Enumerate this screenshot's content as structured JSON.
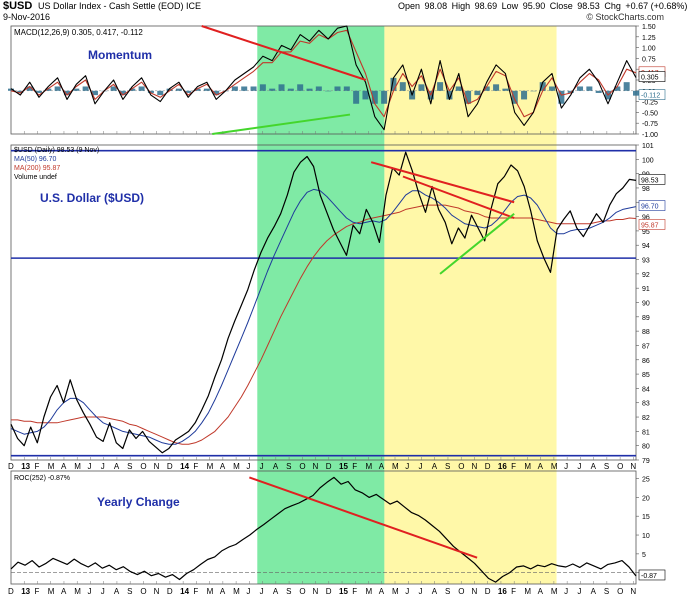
{
  "header": {
    "symbol": "$USD",
    "description": "US Dollar Index - Cash Settle (EOD) ICE",
    "date": "9-Nov-2016",
    "open_label": "Open",
    "open": "98.08",
    "high_label": "High",
    "high": "98.69",
    "low_label": "Low",
    "low": "95.90",
    "close_label": "Close",
    "close": "98.53",
    "chg_label": "Chg",
    "chg": "+0.67 (+0.68%)",
    "credit": "© StockCharts.com"
  },
  "colors": {
    "green_zone": "#7FEAA5",
    "yellow_zone": "#FFF8A8",
    "price_line": "#000000",
    "ma50": "#1F3B9B",
    "ma200": "#C0392B",
    "macd_line": "#000000",
    "signal_line": "#C0392B",
    "histogram": "#2E6E8E",
    "support_line": "#1F2FA8",
    "trend_red": "#E02020",
    "trend_green": "#44D62C"
  },
  "chart_data": [
    {
      "id": "macd-panel",
      "type": "line",
      "legend": "MACD(12,26,9) 0.305, 0.417, -0.112",
      "legend_parts": {
        "name": "MACD(12,26,9)",
        "macd": "0.305",
        "signal": "0.417",
        "hist": "-0.112"
      },
      "annotation": "Momentum",
      "ylim": [
        -1.0,
        1.5
      ],
      "y_ticks": [
        "1.50",
        "1.25",
        "1.00",
        "0.75",
        "0.50",
        "0.25",
        "0.00",
        "-0.25",
        "-0.50",
        "-0.75",
        "-1.00"
      ],
      "value_badges": [
        "0.305",
        "0.417",
        "-0.112"
      ],
      "macd": [
        0.05,
        -0.1,
        0.2,
        -0.15,
        0.1,
        0.3,
        -0.2,
        0.15,
        0.35,
        -0.3,
        0.0,
        0.25,
        -0.2,
        0.1,
        0.3,
        -0.1,
        -0.25,
        0.05,
        0.2,
        -0.15,
        0.1,
        0.2,
        -0.2,
        0.0,
        0.25,
        0.4,
        0.55,
        0.8,
        0.7,
        1.05,
        0.95,
        1.3,
        1.15,
        1.4,
        1.2,
        1.45,
        1.5,
        0.6,
        0.2,
        -0.6,
        -0.9,
        0.3,
        0.6,
        -0.1,
        0.5,
        -0.3,
        0.7,
        -0.2,
        0.4,
        -0.6,
        -0.3,
        0.2,
        0.6,
        0.4,
        -0.5,
        -0.8,
        -0.5,
        0.2,
        0.4,
        -0.4,
        -0.1,
        0.3,
        0.5,
        0.2,
        -0.3,
        0.2,
        0.7,
        0.305
      ],
      "signal": [
        0.0,
        -0.05,
        0.1,
        -0.1,
        0.05,
        0.2,
        -0.1,
        0.1,
        0.25,
        -0.2,
        0.0,
        0.15,
        -0.1,
        0.05,
        0.2,
        -0.05,
        -0.15,
        0.0,
        0.15,
        -0.1,
        0.05,
        0.15,
        -0.1,
        0.0,
        0.15,
        0.3,
        0.45,
        0.65,
        0.65,
        0.9,
        0.9,
        1.15,
        1.1,
        1.3,
        1.2,
        1.35,
        1.4,
        0.9,
        0.4,
        -0.3,
        -0.6,
        0.0,
        0.4,
        0.1,
        0.35,
        -0.1,
        0.5,
        0.0,
        0.3,
        -0.3,
        -0.2,
        0.1,
        0.45,
        0.35,
        -0.2,
        -0.6,
        -0.5,
        0.0,
        0.3,
        -0.1,
        -0.05,
        0.2,
        0.4,
        0.25,
        -0.1,
        0.1,
        0.5,
        0.417
      ],
      "trendlines": [
        {
          "color": "trend_red",
          "from": [
            36,
            1.5
          ],
          "to": [
            67,
            0.25
          ]
        },
        {
          "color": "trend_green",
          "from": [
            38,
            -1.0
          ],
          "to": [
            64,
            -0.55
          ]
        }
      ]
    },
    {
      "id": "price-panel",
      "type": "line",
      "legend": [
        "$USD (Daily) 98.53 (9 Nov)",
        "MA(50) 96.70",
        "MA(200) 95.87",
        "Volume undef"
      ],
      "annotation": "U.S. Dollar ($USD)",
      "ylim": [
        79,
        101
      ],
      "y_ticks": [
        "101",
        "100",
        "99",
        "98",
        "97",
        "96",
        "95",
        "94",
        "93",
        "92",
        "91",
        "90",
        "89",
        "88",
        "87",
        "86",
        "85",
        "84",
        "83",
        "82",
        "81",
        "80",
        "79"
      ],
      "value_badges": [
        "98.53",
        "96.70",
        "95.87"
      ],
      "support_lines": [
        100.6,
        93.1,
        79.3
      ],
      "price": [
        81.5,
        80.5,
        80.0,
        81.3,
        80.2,
        82.0,
        83.4,
        84.2,
        83.0,
        84.6,
        83.2,
        82.3,
        81.5,
        80.6,
        80.3,
        81.6,
        80.2,
        79.8,
        81.1,
        80.5,
        81.0,
        80.3,
        79.9,
        79.5,
        79.8,
        80.4,
        80.7,
        81.0,
        81.6,
        82.5,
        83.5,
        84.8,
        86.0,
        87.5,
        88.7,
        89.8,
        90.9,
        92.3,
        93.5,
        94.5,
        95.3,
        96.2,
        97.5,
        99.1,
        99.8,
        100.2,
        99.5,
        97.5,
        96.3,
        95.1,
        94.2,
        93.3,
        95.4,
        94.8,
        96.5,
        95.6,
        94.2,
        97.5,
        99.4,
        98.9,
        100.5,
        99.2,
        97.6,
        96.3,
        98.1,
        96.5,
        95.6,
        94.1,
        95.2,
        94.5,
        96.1,
        95.2,
        94.3,
        96.6,
        98.3,
        98.8,
        99.6,
        99.2,
        98.1,
        96.4,
        94.3,
        93.1,
        92.1,
        95.1,
        95.8,
        96.4,
        95.2,
        94.6,
        95.4,
        96.2,
        95.6,
        96.8,
        97.6,
        98.0,
        98.6,
        98.53
      ],
      "ma50": [
        81.2,
        81.0,
        80.8,
        80.9,
        81.0,
        81.3,
        81.8,
        82.5,
        83.0,
        83.3,
        83.3,
        83.0,
        82.5,
        82.0,
        81.6,
        81.4,
        81.2,
        81.0,
        80.9,
        80.8,
        80.7,
        80.6,
        80.4,
        80.2,
        80.1,
        80.1,
        80.3,
        80.6,
        81.0,
        81.6,
        82.3,
        83.2,
        84.2,
        85.3,
        86.4,
        87.5,
        88.6,
        89.8,
        91.0,
        92.2,
        93.3,
        94.3,
        95.3,
        96.3,
        97.1,
        97.7,
        97.9,
        97.8,
        97.4,
        96.9,
        96.4,
        95.9,
        95.6,
        95.5,
        95.6,
        95.7,
        95.6,
        95.8,
        96.3,
        96.9,
        97.5,
        97.8,
        97.8,
        97.5,
        97.3,
        97.0,
        96.6,
        96.1,
        95.8,
        95.5,
        95.4,
        95.3,
        95.2,
        95.4,
        95.8,
        96.4,
        97.0,
        97.4,
        97.5,
        97.3,
        96.8,
        96.0,
        95.2,
        94.8,
        94.8,
        95.0,
        95.1,
        95.1,
        95.2,
        95.4,
        95.6,
        95.9,
        96.3,
        96.5,
        96.6,
        96.7
      ],
      "ma200": [
        81.8,
        81.8,
        81.7,
        81.7,
        81.6,
        81.6,
        81.6,
        81.6,
        81.7,
        81.8,
        81.9,
        82.0,
        82.0,
        82.0,
        82.0,
        81.9,
        81.8,
        81.7,
        81.5,
        81.4,
        81.2,
        81.0,
        80.8,
        80.6,
        80.4,
        80.2,
        80.1,
        80.1,
        80.2,
        80.4,
        80.7,
        81.0,
        81.5,
        82.0,
        82.7,
        83.4,
        84.2,
        85.1,
        86.0,
        87.0,
        88.0,
        89.0,
        89.9,
        90.8,
        91.7,
        92.5,
        93.2,
        93.8,
        94.3,
        94.7,
        95.0,
        95.3,
        95.5,
        95.6,
        95.8,
        95.9,
        96.0,
        96.1,
        96.2,
        96.3,
        96.5,
        96.6,
        96.7,
        96.8,
        96.8,
        96.8,
        96.8,
        96.7,
        96.6,
        96.4,
        96.3,
        96.2,
        96.0,
        95.9,
        95.9,
        95.9,
        95.9,
        95.9,
        95.9,
        95.9,
        95.8,
        95.7,
        95.6,
        95.5,
        95.5,
        95.5,
        95.5,
        95.5,
        95.5,
        95.6,
        95.7,
        95.7,
        95.8,
        95.8,
        95.9,
        95.87
      ],
      "trendlines": [
        {
          "color": "trend_red",
          "from": [
            68,
            99.8
          ],
          "to": [
            95,
            97.0
          ]
        },
        {
          "color": "trend_red",
          "from": [
            74,
            98.8
          ],
          "to": [
            95,
            95.9
          ]
        },
        {
          "color": "trend_green",
          "from": [
            81,
            92.0
          ],
          "to": [
            95,
            96.2
          ]
        }
      ]
    },
    {
      "id": "roc-panel",
      "type": "line",
      "legend": "ROC(252) -0.87%",
      "annotation": "Yearly Change",
      "ylim": [
        -3,
        27
      ],
      "y_ticks": [
        "25",
        "20",
        "15",
        "10",
        "5",
        "0"
      ],
      "value_badges": [
        "-0.87"
      ],
      "values": [
        1.0,
        2.8,
        2.0,
        3.2,
        1.5,
        2.5,
        3.8,
        3.0,
        2.2,
        3.6,
        2.4,
        1.5,
        2.6,
        1.2,
        2.0,
        0.8,
        1.6,
        0.3,
        -0.5,
        0.4,
        -0.8,
        -0.2,
        -1.2,
        -0.5,
        -1.8,
        -0.2,
        0.8,
        2.2,
        3.5,
        4.2,
        5.8,
        6.8,
        7.5,
        8.8,
        10.0,
        11.5,
        12.8,
        14.2,
        15.6,
        17.0,
        17.8,
        18.5,
        19.5,
        20.5,
        22.5,
        24.0,
        25.3,
        23.5,
        24.2,
        22.0,
        21.2,
        20.0,
        20.8,
        19.5,
        18.2,
        19.0,
        17.5,
        16.0,
        15.2,
        14.0,
        12.5,
        11.0,
        9.0,
        7.0,
        5.5,
        4.0,
        2.5,
        0.5,
        -1.5,
        -2.5,
        -1.0,
        0.0,
        1.5,
        1.8,
        1.0,
        2.0,
        1.6,
        2.4,
        1.8,
        1.5,
        2.3,
        1.4,
        2.6,
        1.8,
        1.0,
        2.2,
        2.6,
        3.2,
        1.5,
        -0.87
      ],
      "trendlines": [
        {
          "color": "trend_red",
          "from": [
            45,
            25.3
          ],
          "to": [
            88,
            4.0
          ]
        }
      ]
    }
  ],
  "x_axis": {
    "bottom_ticks": [
      {
        "pos": 0.0,
        "label": "D"
      },
      {
        "pos": 2.5,
        "label": "13"
      },
      {
        "pos": 5.0,
        "label": "F"
      },
      {
        "pos": 7.5,
        "label": "M"
      },
      {
        "pos": 10.0,
        "label": "A"
      },
      {
        "pos": 12.5,
        "label": "M"
      },
      {
        "pos": 15.0,
        "label": "J"
      },
      {
        "pos": 17.5,
        "label": "J"
      },
      {
        "pos": 20.0,
        "label": "A"
      },
      {
        "pos": 22.5,
        "label": "S"
      },
      {
        "pos": 25.0,
        "label": "O"
      },
      {
        "pos": 27.5,
        "label": "N"
      },
      {
        "pos": 30.0,
        "label": "D"
      },
      {
        "pos": 32.5,
        "label": "14"
      },
      {
        "pos": 35.0,
        "label": "F"
      },
      {
        "pos": 37.5,
        "label": "M"
      },
      {
        "pos": 40.0,
        "label": "A"
      },
      {
        "pos": 42.5,
        "label": "M"
      },
      {
        "pos": 45.0,
        "label": "J"
      },
      {
        "pos": 47.5,
        "label": "J"
      },
      {
        "pos": 50.0,
        "label": "A"
      },
      {
        "pos": 52.5,
        "label": "S"
      },
      {
        "pos": 55.0,
        "label": "O"
      },
      {
        "pos": 57.5,
        "label": "N"
      },
      {
        "pos": 60.0,
        "label": "D"
      },
      {
        "pos": 62.5,
        "label": "15"
      },
      {
        "pos": 65.0,
        "label": "F"
      },
      {
        "pos": 67.5,
        "label": "M"
      },
      {
        "pos": 70.0,
        "label": "A"
      },
      {
        "pos": 72.5,
        "label": "M"
      },
      {
        "pos": 75.0,
        "label": "J"
      },
      {
        "pos": 77.5,
        "label": "J"
      },
      {
        "pos": 80.0,
        "label": "A"
      },
      {
        "pos": 82.5,
        "label": "S"
      },
      {
        "pos": 85.0,
        "label": "O"
      },
      {
        "pos": 87.5,
        "label": "N"
      },
      {
        "pos": 90.0,
        "label": "D"
      },
      {
        "pos": 92.5,
        "label": "16"
      },
      {
        "pos": 95.0,
        "label": "F"
      },
      {
        "pos": 97.5,
        "label": "M"
      },
      {
        "pos": 100.0,
        "label": "A"
      },
      {
        "pos": 102.5,
        "label": "M"
      },
      {
        "pos": 105.0,
        "label": "J"
      },
      {
        "pos": 107.5,
        "label": "J"
      },
      {
        "pos": 110.0,
        "label": "A"
      },
      {
        "pos": 112.5,
        "label": "S"
      },
      {
        "pos": 115.0,
        "label": "O"
      },
      {
        "pos": 117.5,
        "label": "N"
      }
    ],
    "range": [
      0,
      118
    ],
    "green_zone": [
      46.5,
      70.5
    ],
    "yellow_zone": [
      70.5,
      103.0
    ]
  }
}
